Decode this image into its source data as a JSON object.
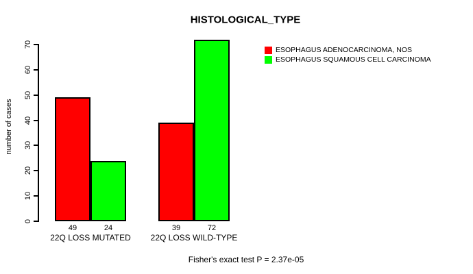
{
  "chart_data": {
    "type": "bar",
    "title": "HISTOLOGICAL_TYPE",
    "categories": [
      "22Q LOSS MUTATED",
      "22Q LOSS WILD-TYPE"
    ],
    "series": [
      {
        "name": "ESOPHAGUS ADENOCARCINOMA, NOS",
        "color": "#ff0000",
        "values": [
          49,
          39
        ]
      },
      {
        "name": "ESOPHAGUS SQUAMOUS CELL CARCINOMA",
        "color": "#00ff00",
        "values": [
          24,
          72
        ]
      }
    ],
    "ylabel": "number of cases",
    "xlabel": "",
    "yticks": [
      0,
      10,
      20,
      30,
      40,
      50,
      60,
      70
    ],
    "ylim": [
      0,
      72
    ],
    "grid": false,
    "bar_borders": "black",
    "legend_position": "top-right-outside",
    "value_labels_position": "below-bars",
    "footer": "Fisher's exact test P = 2.37e-05"
  }
}
